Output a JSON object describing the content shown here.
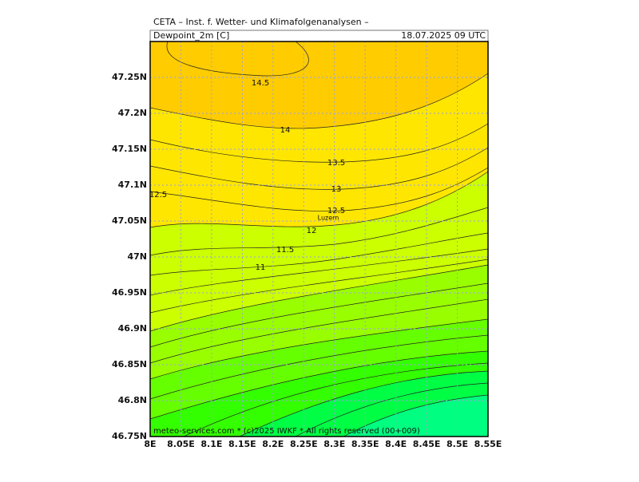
{
  "header": {
    "title": "CETA – Inst. f. Wetter- und Klimafolgenanalysen –",
    "field": "Dewpoint_2m [C]",
    "valid": "18.07.2025 09 UTC"
  },
  "axes": {
    "lat": [
      "47.25N",
      "47.2N",
      "47.15N",
      "47.1N",
      "47.05N",
      "47N",
      "46.95N",
      "46.9N",
      "46.85N",
      "46.8N",
      "46.75N"
    ],
    "lon": [
      "8E",
      "8.05E",
      "8.1E",
      "8.15E",
      "8.2E",
      "8.25E",
      "8.3E",
      "8.35E",
      "8.4E",
      "8.45E",
      "8.5E",
      "8.55E"
    ]
  },
  "contours": [
    "14.5",
    "14",
    "13.5",
    "13",
    "12.5",
    "12.5",
    "12",
    "11.5",
    "11"
  ],
  "places": [
    "Luzern"
  ],
  "footer": "meteo-services.com * (c)2025 IWKF * All rights reserved (00+009)"
}
